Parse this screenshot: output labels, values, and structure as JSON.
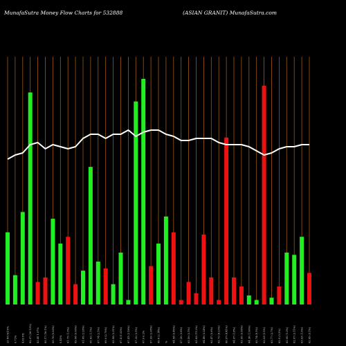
{
  "chart_data": {
    "type": "bar",
    "title_left": "MunafaSutra  Money Flow  Charts for 532888",
    "title_right": "(ASIAN  GRANIT) MunafaSutra.com",
    "colors": {
      "background": "#000000",
      "up": "#22ee22",
      "down": "#ee1111",
      "grid": "#a05a14",
      "line": "#ffffff"
    },
    "ylim": [
      0,
      100
    ],
    "categories": [
      "22 Fri Vol 6%",
      "0.72%",
      "4.82 Fri",
      "82.07 (26.12%)",
      "83.45 1.07%",
      "82.17 (16.1%)",
      "69.76 (0.09%)",
      "0.45%",
      "61.75 (1.3%)",
      "69.58 (0.06%)",
      "61.65 (2.28%)",
      "65.62 (1.1%)",
      "67.74 (2.1%)",
      "69.0 (2.70%)",
      "63.58 (3.31%)",
      "67.4 (1.02%)",
      "67.41 (2.18%)",
      "67.32 (3.1%)",
      "67.9 0.2%",
      "67.09 (2.08%)",
      "66.8 (2.14%)",
      "%",
      "64.58 (0.46%)",
      "67.26 (3.8%)",
      "63.59 (2.1%)",
      "63.83 (11.2%)",
      "64.49 (3.24%)",
      "63.47 (0.6%)",
      "62.72 (8.23%)",
      "60.97 (4.41%)",
      "64.97 (1.8%)",
      "63.95 (0.58%)",
      "64.36 (1.96%)",
      "62.74 (6.1%)",
      "62.23 (2.1%)",
      "63.77 (2.7%)",
      "62.5 (3.2%)",
      "62.95 (1.3%)",
      "62.57 (3.11%)",
      "63.93 (1.9%)",
      "62.65 (3.1%)"
    ],
    "directions": [
      "up",
      "up",
      "up",
      "up",
      "down",
      "down",
      "up",
      "up",
      "down",
      "down",
      "up",
      "up",
      "up",
      "down",
      "up",
      "up",
      "up",
      "up",
      "up",
      "down",
      "up",
      "up",
      "down",
      "down",
      "down",
      "down",
      "down",
      "down",
      "down",
      "down",
      "down",
      "down",
      "up",
      "up",
      "down",
      "up",
      "down",
      "up",
      "up",
      "up",
      "down"
    ],
    "bars": [
      32,
      13,
      41,
      94,
      10,
      12,
      38,
      27,
      30,
      9,
      15,
      61,
      19,
      16,
      9,
      23,
      2,
      90,
      100,
      17,
      27,
      39,
      32,
      2,
      10,
      5,
      31,
      12,
      2,
      74,
      12,
      8,
      4,
      2,
      97,
      3,
      8,
      23,
      22,
      30,
      14
    ],
    "line": [
      70,
      72,
      73,
      77,
      78,
      75,
      77,
      76,
      75,
      76,
      80,
      82,
      82,
      80,
      82,
      82,
      84,
      81,
      83,
      84,
      84,
      82,
      81,
      79,
      79,
      80,
      80,
      80,
      78,
      77,
      77,
      77,
      76,
      74,
      72,
      73,
      75,
      76,
      76,
      77,
      77
    ]
  }
}
